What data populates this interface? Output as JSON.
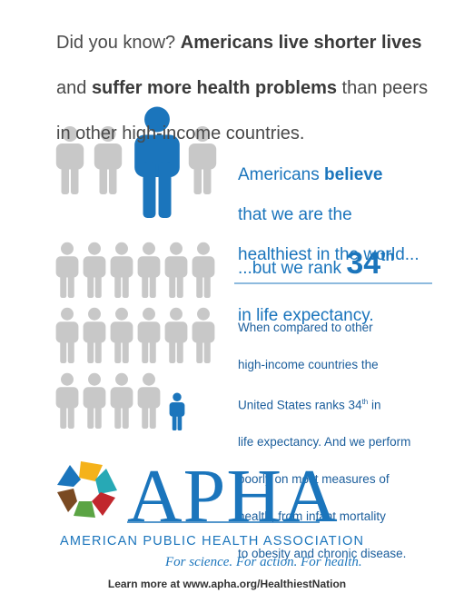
{
  "intro": {
    "lines": [
      [
        "Did you know? ",
        "Americans live shorter lives"
      ],
      [
        "and ",
        "suffer more health problems",
        " than peers"
      ],
      [
        "in other high-income countries."
      ]
    ]
  },
  "belief": {
    "lines": [
      [
        "Americans ",
        "believe"
      ],
      [
        "that we are the"
      ],
      [
        "healthiest in the world..."
      ]
    ]
  },
  "rank": {
    "lines": [
      [
        "...but we rank ",
        "34",
        "th"
      ],
      [
        "in life expectancy."
      ]
    ]
  },
  "detail": {
    "lines": [
      [
        "When compared to other"
      ],
      [
        "high-income countries the"
      ],
      [
        "United States ranks 34",
        "th",
        " in"
      ],
      [
        "life expectancy. And we perform"
      ],
      [
        "poorly on most measures of"
      ],
      [
        "health, from infant mortality"
      ],
      [
        "to obesity and chronic disease."
      ]
    ]
  },
  "logo": {
    "wordmark": "APHA",
    "name": "AMERICAN PUBLIC HEALTH ASSOCIATION",
    "tagline": "For science. For action. For health."
  },
  "footer": "Learn more at www.apha.org/HealthiestNation"
}
